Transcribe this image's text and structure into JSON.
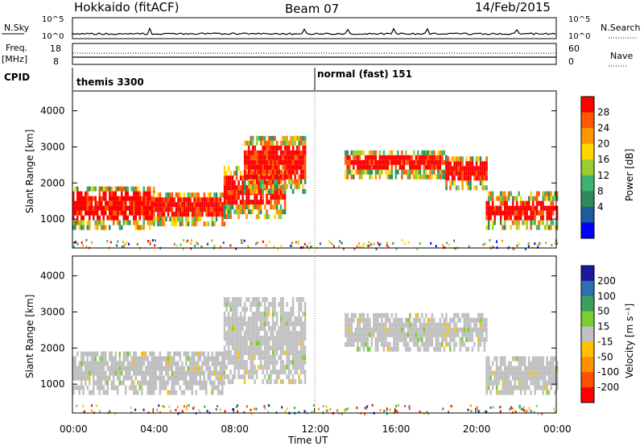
{
  "header": {
    "radar": "Hokkaido (fitACF)",
    "beam": "Beam 07",
    "date": "14/Feb/2015"
  },
  "strips": {
    "nsky_label": "N.Sky",
    "nsky_ticks": [
      "10^5",
      "10^0"
    ],
    "nsearch_label": "N.Search",
    "freq_label_1": "Freq.",
    "freq_label_2": "[MHz]",
    "freq_ticks": [
      "18",
      "8"
    ],
    "nave_label": "Nave",
    "nave_ticks": [
      "60",
      "0"
    ],
    "cpid_label": "CPID",
    "cpid_modes": [
      {
        "name": "themis 3300",
        "start": "00:00"
      },
      {
        "name": "normal (fast) 151",
        "start": "12:00"
      }
    ]
  },
  "chart_data": [
    {
      "type": "heatmap",
      "name": "power-panel",
      "ylabel": "Slant Range [km]",
      "yticks": [
        1000,
        2000,
        3000,
        4000
      ],
      "ylim": [
        200,
        4550
      ],
      "xlim": [
        "00:00",
        "24:00"
      ],
      "colorbar": {
        "label": "Power [dB]",
        "ticks": [
          "28",
          "24",
          "20",
          "16",
          "12",
          "8",
          "4"
        ],
        "colors": [
          "#ff0000",
          "#ff5a00",
          "#ff9600",
          "#ffd700",
          "#9acd32",
          "#3cb371",
          "#2e8b57",
          "#1e5aa0",
          "#0000ff"
        ]
      },
      "regions": [
        {
          "t0": 0.0,
          "t1": 4.0,
          "r0": 700,
          "r1": 1900,
          "level": "high"
        },
        {
          "t0": 4.0,
          "t1": 7.5,
          "r0": 800,
          "r1": 1700,
          "level": "high"
        },
        {
          "t0": 7.5,
          "t1": 10.5,
          "r0": 1000,
          "r1": 2400,
          "level": "high"
        },
        {
          "t0": 8.5,
          "t1": 11.5,
          "r0": 1700,
          "r1": 3300,
          "level": "mid"
        },
        {
          "t0": 13.5,
          "t1": 18.5,
          "r0": 2100,
          "r1": 2900,
          "level": "high"
        },
        {
          "t0": 18.5,
          "t1": 20.5,
          "r0": 1800,
          "r1": 2700,
          "level": "high"
        },
        {
          "t0": 20.5,
          "t1": 24.0,
          "r0": 700,
          "r1": 1700,
          "level": "high"
        }
      ]
    },
    {
      "type": "heatmap",
      "name": "velocity-panel",
      "ylabel": "Slant Range [km]",
      "xlabel": "Time UT",
      "xticks": [
        "00:00",
        "04:00",
        "08:00",
        "12:00",
        "16:00",
        "20:00",
        "00:00"
      ],
      "yticks": [
        1000,
        2000,
        3000,
        4000
      ],
      "ylim": [
        200,
        4550
      ],
      "colorbar": {
        "label": "Velocity [m s⁻¹]",
        "ticks": [
          "200",
          "100",
          "50",
          "15",
          "-15",
          "-50",
          "-100",
          "-200"
        ],
        "colors": [
          "#1a1aa0",
          "#2e6fb0",
          "#3ca05a",
          "#7dcd32",
          "#c0c0c0",
          "#ffc000",
          "#ff9000",
          "#ff5000",
          "#ff0000"
        ]
      },
      "regions": [
        {
          "t0": 0.0,
          "t1": 7.5,
          "r0": 700,
          "r1": 1900,
          "level": "ground"
        },
        {
          "t0": 7.5,
          "t1": 11.5,
          "r0": 1000,
          "r1": 3300,
          "level": "ground"
        },
        {
          "t0": 13.5,
          "t1": 20.5,
          "r0": 1900,
          "r1": 2900,
          "level": "ground"
        },
        {
          "t0": 20.5,
          "t1": 24.0,
          "r0": 700,
          "r1": 1700,
          "level": "ground"
        }
      ]
    }
  ]
}
